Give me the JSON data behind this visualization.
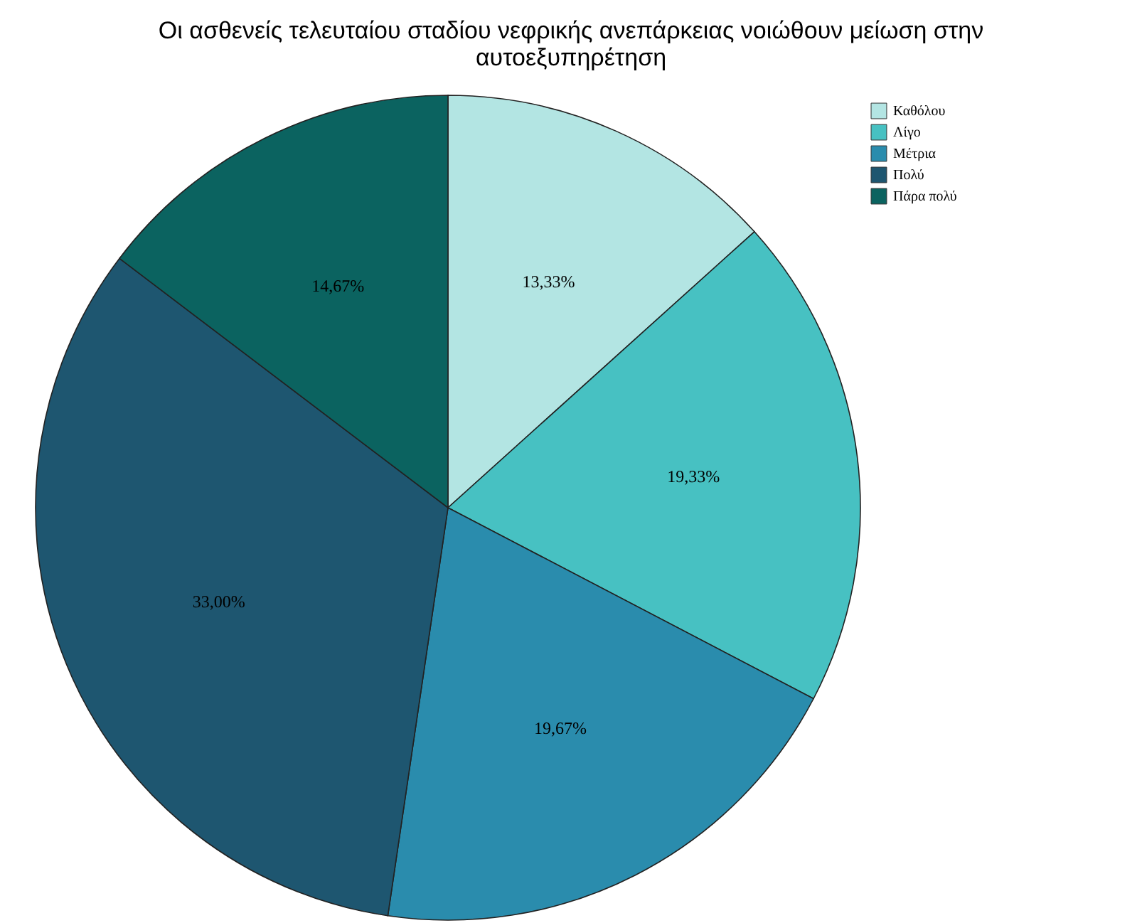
{
  "chart_data": {
    "type": "pie",
    "title": "Οι ασθενείς τελευταίου σταδίου νεφρικής ανεπάρκειας νοιώθουν μείωση στην αυτοεξυπηρέτηση",
    "categories": [
      "Καθόλου",
      "Λίγο",
      "Μέτρια",
      "Πολύ",
      "Πάρα πολύ"
    ],
    "values": [
      13.33,
      19.33,
      19.67,
      33.0,
      14.67
    ],
    "value_labels": [
      "13,33%",
      "19,33%",
      "19,67%",
      "33,00%",
      "14,67%"
    ],
    "colors": [
      "#b3e5e3",
      "#47c1c2",
      "#2a8cad",
      "#1e5670",
      "#0b6360"
    ],
    "legend": "top right"
  }
}
